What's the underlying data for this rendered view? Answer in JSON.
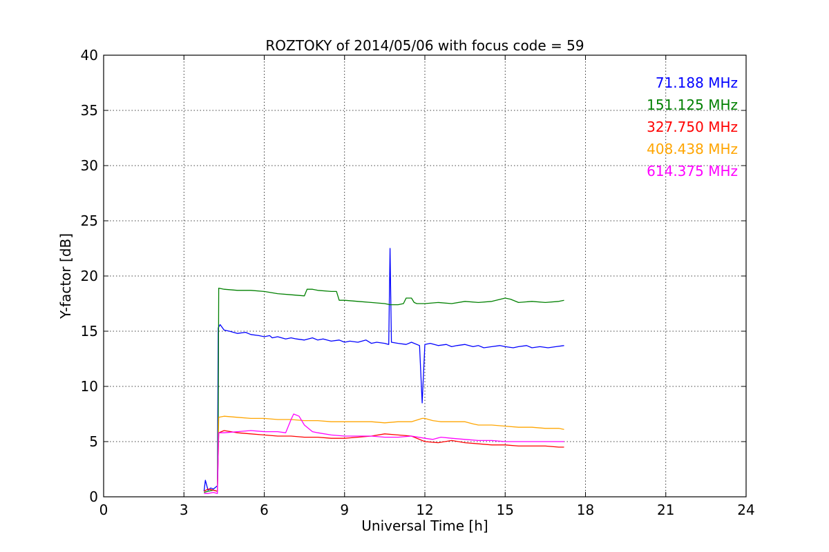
{
  "chart_data": {
    "type": "line",
    "title": "ROZTOKY of 2014/05/06 with focus code = 59",
    "xlabel": "Universal Time [h]",
    "ylabel": "Y-factor [dB]",
    "xlim": [
      0,
      24
    ],
    "ylim": [
      0,
      40
    ],
    "xticks": [
      0,
      3,
      6,
      9,
      12,
      15,
      18,
      21,
      24
    ],
    "yticks": [
      0,
      5,
      10,
      15,
      20,
      25,
      30,
      35,
      40
    ],
    "grid": true,
    "legend_position": "top-right",
    "series": [
      {
        "name": "71.188 MHz",
        "color": "#0000ff",
        "x": [
          3.75,
          3.8,
          3.9,
          4.0,
          4.1,
          4.2,
          4.25,
          4.28,
          4.35,
          4.5,
          4.7,
          5.0,
          5.3,
          5.5,
          5.8,
          6.0,
          6.2,
          6.3,
          6.5,
          6.8,
          7.0,
          7.2,
          7.5,
          7.8,
          8.0,
          8.2,
          8.5,
          8.8,
          9.0,
          9.2,
          9.5,
          9.8,
          10.0,
          10.2,
          10.5,
          10.65,
          10.7,
          10.75,
          11.0,
          11.3,
          11.5,
          11.8,
          11.9,
          12.0,
          12.2,
          12.5,
          12.8,
          13.0,
          13.2,
          13.5,
          13.8,
          14.0,
          14.2,
          14.5,
          14.8,
          15.0,
          15.3,
          15.5,
          15.8,
          16.0,
          16.3,
          16.6,
          16.9,
          17.2
        ],
        "y": [
          0.5,
          1.5,
          0.6,
          0.8,
          0.7,
          0.9,
          1.0,
          15.3,
          15.6,
          15.1,
          15.0,
          14.8,
          14.9,
          14.7,
          14.6,
          14.5,
          14.6,
          14.4,
          14.5,
          14.3,
          14.4,
          14.3,
          14.2,
          14.4,
          14.2,
          14.3,
          14.1,
          14.2,
          14.0,
          14.1,
          14.0,
          14.2,
          13.9,
          14.0,
          13.9,
          13.8,
          22.5,
          14.0,
          13.9,
          13.8,
          14.0,
          13.7,
          8.5,
          13.8,
          13.9,
          13.7,
          13.8,
          13.6,
          13.7,
          13.8,
          13.6,
          13.7,
          13.5,
          13.6,
          13.7,
          13.6,
          13.5,
          13.6,
          13.7,
          13.5,
          13.6,
          13.5,
          13.6,
          13.7
        ]
      },
      {
        "name": "151.125 MHz",
        "color": "#008000",
        "x": [
          3.75,
          3.9,
          4.1,
          4.25,
          4.28,
          4.3,
          4.5,
          5.0,
          5.5,
          6.0,
          6.5,
          7.0,
          7.5,
          7.6,
          7.8,
          8.0,
          8.5,
          8.7,
          8.8,
          9.0,
          9.5,
          10.0,
          10.5,
          10.7,
          11.0,
          11.2,
          11.3,
          11.5,
          11.6,
          11.7,
          12.0,
          12.5,
          13.0,
          13.5,
          14.0,
          14.5,
          15.0,
          15.2,
          15.5,
          16.0,
          16.5,
          17.0,
          17.2
        ],
        "y": [
          0.4,
          0.5,
          0.6,
          0.5,
          7.0,
          18.9,
          18.8,
          18.7,
          18.7,
          18.6,
          18.4,
          18.3,
          18.2,
          18.8,
          18.8,
          18.7,
          18.6,
          18.6,
          17.8,
          17.8,
          17.7,
          17.6,
          17.5,
          17.4,
          17.4,
          17.5,
          18.0,
          18.0,
          17.6,
          17.5,
          17.5,
          17.6,
          17.5,
          17.7,
          17.6,
          17.7,
          18.0,
          17.9,
          17.6,
          17.7,
          17.6,
          17.7,
          17.8
        ]
      },
      {
        "name": "327.750 MHz",
        "color": "#ff0000",
        "x": [
          3.75,
          3.9,
          4.1,
          4.25,
          4.3,
          4.5,
          5.0,
          5.5,
          6.0,
          6.5,
          7.0,
          7.5,
          8.0,
          8.5,
          9.0,
          9.5,
          10.0,
          10.5,
          11.0,
          11.5,
          12.0,
          12.5,
          13.0,
          13.5,
          14.0,
          14.5,
          15.0,
          15.5,
          16.0,
          16.5,
          17.0,
          17.2
        ],
        "y": [
          0.5,
          0.7,
          0.6,
          0.5,
          5.8,
          6.0,
          5.8,
          5.7,
          5.6,
          5.5,
          5.5,
          5.4,
          5.4,
          5.3,
          5.3,
          5.4,
          5.5,
          5.7,
          5.6,
          5.5,
          5.0,
          4.9,
          5.1,
          4.9,
          4.8,
          4.7,
          4.7,
          4.6,
          4.6,
          4.6,
          4.5,
          4.5
        ]
      },
      {
        "name": "408.438 MHz",
        "color": "#ffa500",
        "x": [
          4.25,
          4.3,
          4.5,
          5.0,
          5.5,
          6.0,
          6.5,
          7.0,
          7.5,
          8.0,
          8.5,
          9.0,
          9.5,
          10.0,
          10.5,
          11.0,
          11.5,
          11.9,
          12.0,
          12.3,
          12.6,
          13.0,
          13.5,
          13.8,
          14.0,
          14.5,
          15.0,
          15.5,
          16.0,
          16.5,
          17.0,
          17.2
        ],
        "y": [
          0.6,
          7.2,
          7.3,
          7.2,
          7.1,
          7.1,
          7.0,
          7.0,
          6.9,
          6.9,
          6.8,
          6.8,
          6.8,
          6.8,
          6.7,
          6.8,
          6.8,
          7.1,
          7.1,
          6.9,
          6.8,
          6.8,
          6.8,
          6.6,
          6.5,
          6.5,
          6.4,
          6.3,
          6.3,
          6.2,
          6.2,
          6.1
        ]
      },
      {
        "name": "614.375 MHz",
        "color": "#ff00ff",
        "x": [
          3.75,
          3.9,
          4.1,
          4.25,
          4.3,
          4.5,
          5.0,
          5.5,
          6.0,
          6.5,
          6.8,
          7.0,
          7.1,
          7.3,
          7.5,
          7.8,
          8.0,
          8.5,
          9.0,
          9.5,
          10.0,
          10.5,
          11.0,
          11.5,
          12.0,
          12.3,
          12.6,
          13.0,
          13.5,
          14.0,
          14.5,
          15.0,
          15.5,
          16.0,
          16.5,
          17.0,
          17.2
        ],
        "y": [
          0.3,
          0.3,
          0.4,
          0.3,
          5.8,
          5.8,
          5.9,
          6.0,
          5.9,
          5.9,
          5.8,
          7.0,
          7.5,
          7.3,
          6.5,
          5.9,
          5.8,
          5.6,
          5.5,
          5.5,
          5.5,
          5.4,
          5.4,
          5.5,
          5.3,
          5.2,
          5.4,
          5.3,
          5.2,
          5.1,
          5.1,
          5.0,
          5.0,
          5.0,
          5.0,
          5.0,
          5.0
        ]
      }
    ]
  }
}
